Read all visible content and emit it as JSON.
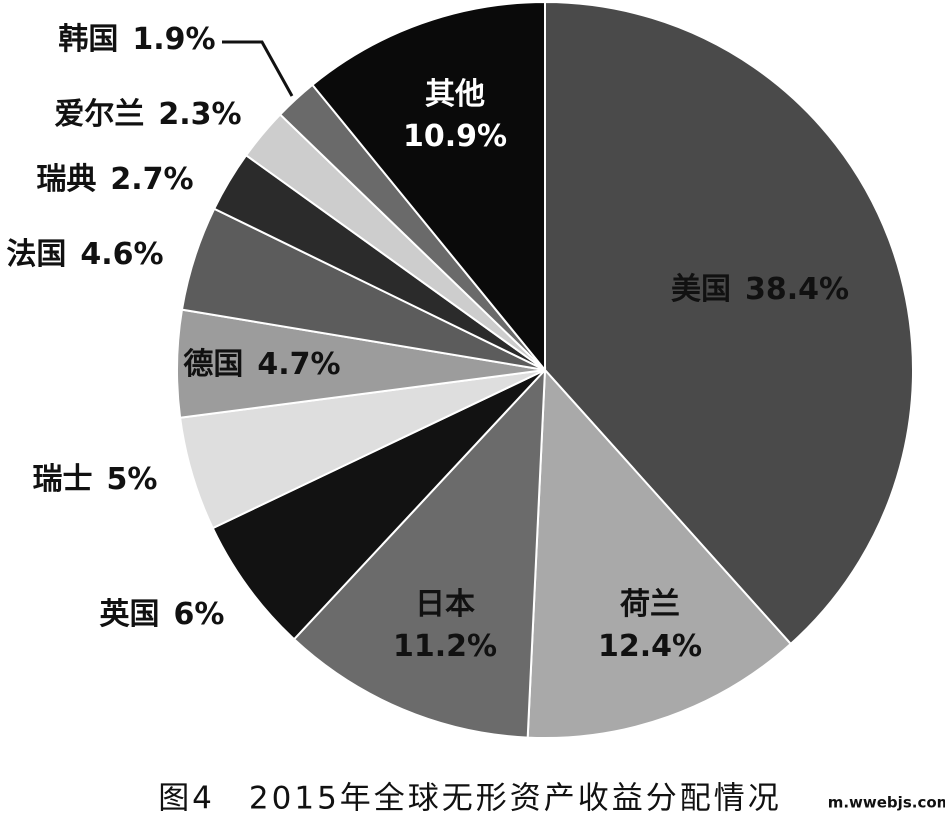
{
  "chart_data": {
    "type": "pie",
    "title": "图4　2015年全球无形资产收益分配情况",
    "watermark": "m.wwebjs.com",
    "categories": [
      "美国",
      "荷兰",
      "日本",
      "英国",
      "瑞士",
      "德国",
      "法国",
      "瑞典",
      "爱尔兰",
      "韩国",
      "其他"
    ],
    "values": [
      38.4,
      12.4,
      11.2,
      6,
      5,
      4.7,
      4.6,
      2.7,
      2.3,
      1.9,
      10.9
    ],
    "value_labels": [
      "38.4%",
      "12.4%",
      "11.2%",
      "6%",
      "5%",
      "4.7%",
      "4.6%",
      "2.7%",
      "2.3%",
      "1.9%",
      "10.9%"
    ],
    "colors": [
      "#4a4a4a",
      "#a9a9a9",
      "#6b6b6b",
      "#121212",
      "#dedede",
      "#9c9c9c",
      "#5c5c5c",
      "#2b2b2b",
      "#cdcdcd",
      "#6a6a6a",
      "#0a0a0a"
    ]
  }
}
